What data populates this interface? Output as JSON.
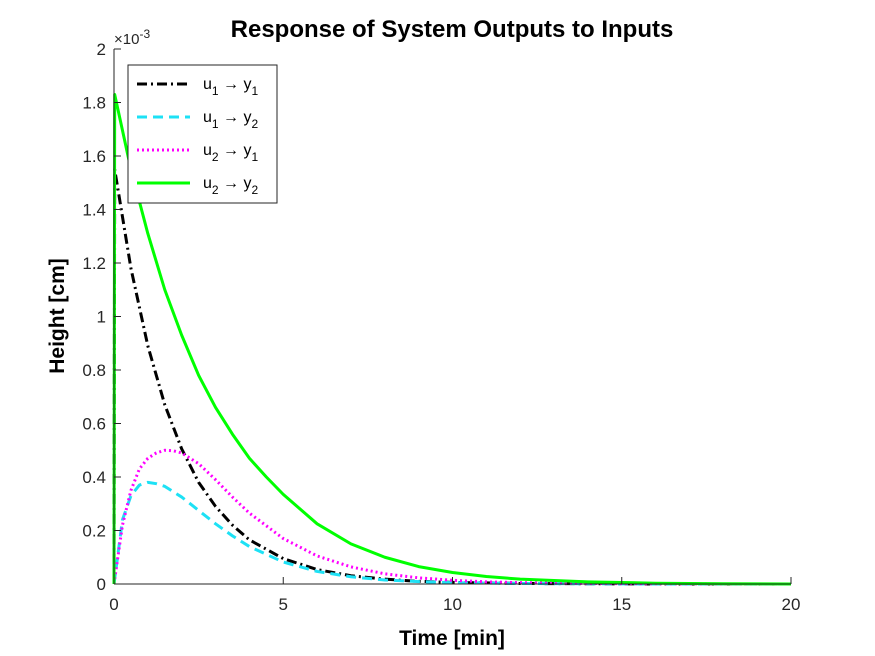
{
  "chart_data": {
    "type": "line",
    "title": "Response of System Outputs to Inputs",
    "xlabel": "Time [min]",
    "ylabel": "Height [cm]",
    "y_exponent_label": "×10",
    "y_exponent_power": "-3",
    "xlim": [
      0,
      20
    ],
    "ylim": [
      0,
      0.002
    ],
    "xticks": [
      0,
      5,
      10,
      15,
      20
    ],
    "xtick_labels": [
      "0",
      "5",
      "10",
      "15",
      "20"
    ],
    "yticks": [
      0,
      0.0002,
      0.0004,
      0.0006,
      0.0008,
      0.001,
      0.0012,
      0.0014,
      0.0016,
      0.0018,
      0.002
    ],
    "ytick_labels": [
      "0",
      "0.2",
      "0.4",
      "0.6",
      "0.8",
      "1",
      "1.2",
      "1.4",
      "1.6",
      "1.8",
      "2"
    ],
    "grid": false,
    "legend_position": "top-left",
    "series": [
      {
        "name": "u1 → y1",
        "legend": {
          "in": "u",
          "in_sub": "1",
          "arrow": "→",
          "out": "y",
          "out_sub": "1"
        },
        "color": "#000000",
        "style": "dashdot",
        "x": [
          0,
          0.02,
          0.5,
          1,
          1.5,
          2,
          2.5,
          3,
          3.5,
          4,
          5,
          6,
          7,
          8,
          9,
          10,
          12,
          14,
          16,
          18,
          20
        ],
        "y": [
          0,
          0.00155,
          0.00118,
          0.00089,
          0.00067,
          0.000505,
          0.00038,
          0.00029,
          0.00022,
          0.000165,
          9.5e-05,
          5.4e-05,
          3.1e-05,
          1.8e-05,
          1e-05,
          6e-06,
          2e-06,
          1e-06,
          0,
          0,
          0
        ]
      },
      {
        "name": "u1 → y2",
        "legend": {
          "in": "u",
          "in_sub": "1",
          "arrow": "→",
          "out": "y",
          "out_sub": "2"
        },
        "color": "#1de1f5",
        "style": "dashed",
        "x": [
          0,
          0.25,
          0.5,
          0.75,
          1,
          1.25,
          1.5,
          2,
          2.5,
          3,
          3.5,
          4,
          5,
          6,
          7,
          8,
          9,
          10,
          12,
          14,
          16,
          18,
          20
        ],
        "y": [
          0,
          0.00024,
          0.00033,
          0.00037,
          0.00038,
          0.000375,
          0.000365,
          0.000325,
          0.000275,
          0.000225,
          0.00018,
          0.00014,
          8.2e-05,
          4.7e-05,
          2.7e-05,
          1.5e-05,
          9e-06,
          5e-06,
          2e-06,
          1e-06,
          0,
          0,
          0
        ]
      },
      {
        "name": "u2 → y1",
        "legend": {
          "in": "u",
          "in_sub": "2",
          "arrow": "→",
          "out": "y",
          "out_sub": "1"
        },
        "color": "#ff00ff",
        "style": "dotted",
        "x": [
          0,
          0.25,
          0.5,
          0.75,
          1,
          1.25,
          1.5,
          1.75,
          2,
          2.5,
          3,
          3.5,
          4,
          5,
          6,
          7,
          8,
          9,
          10,
          11,
          12,
          14,
          16,
          18,
          20
        ],
        "y": [
          0,
          0.00022,
          0.00035,
          0.00043,
          0.00047,
          0.00049,
          0.0005,
          0.000498,
          0.00049,
          0.00045,
          0.00039,
          0.000325,
          0.000265,
          0.00017,
          0.000105,
          6.4e-05,
          3.8e-05,
          2.3e-05,
          1.4e-05,
          8e-06,
          5e-06,
          2e-06,
          1e-06,
          0,
          0
        ]
      },
      {
        "name": "u2 → y2",
        "legend": {
          "in": "u",
          "in_sub": "2",
          "arrow": "→",
          "out": "y",
          "out_sub": "2"
        },
        "color": "#00ff00",
        "style": "solid",
        "x": [
          0,
          0.02,
          0.5,
          1,
          1.5,
          2,
          2.5,
          3,
          3.5,
          4,
          4.5,
          5,
          6,
          7,
          8,
          9,
          10,
          11,
          12,
          14,
          16,
          18,
          20
        ],
        "y": [
          0,
          0.00183,
          0.00155,
          0.00131,
          0.0011,
          0.00093,
          0.00078,
          0.00066,
          0.00056,
          0.00047,
          0.0004,
          0.000335,
          0.000225,
          0.00015,
          0.0001,
          6.5e-05,
          4.3e-05,
          2.8e-05,
          1.8e-05,
          8e-06,
          3e-06,
          1e-06,
          0
        ]
      }
    ]
  }
}
